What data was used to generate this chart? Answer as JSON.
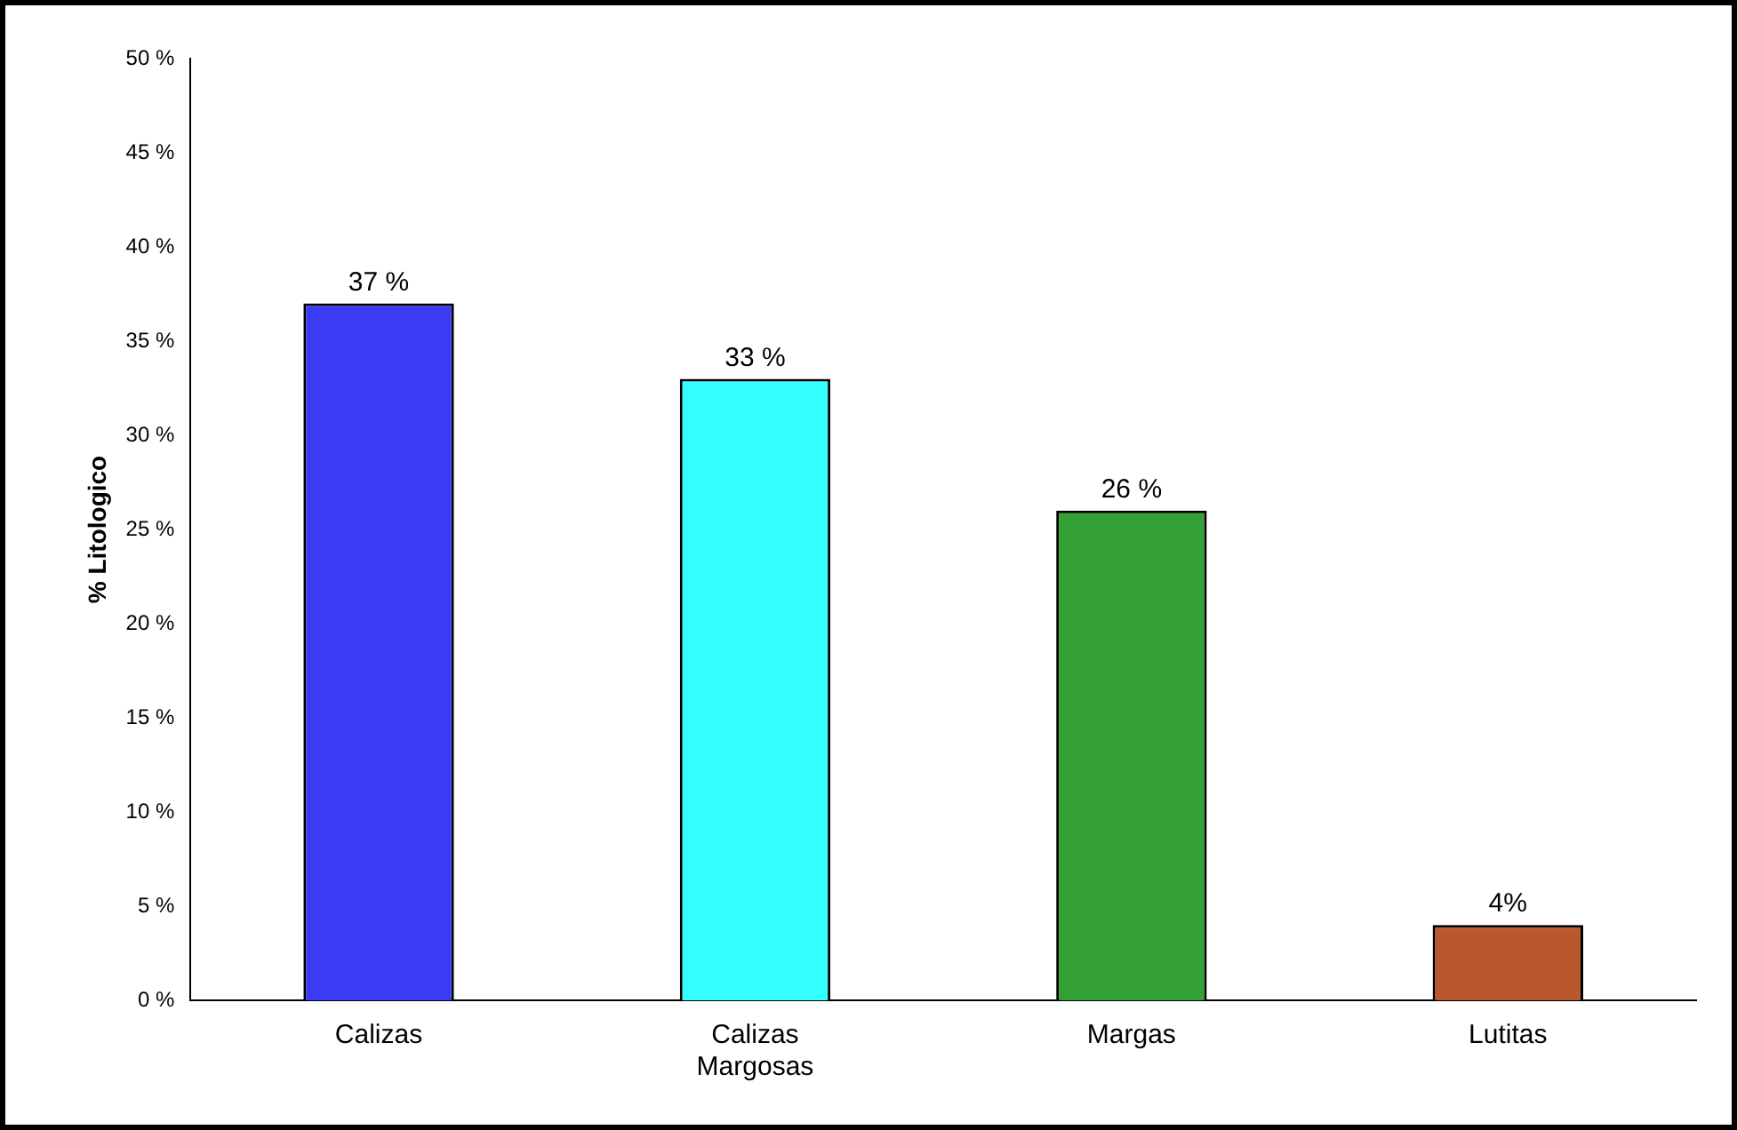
{
  "chart_data": {
    "type": "bar",
    "ylabel": "% Litologico",
    "categories": [
      "Calizas",
      "Calizas Margosas",
      "Margas",
      "Lutitas"
    ],
    "values": [
      37,
      33,
      26,
      4
    ],
    "colors": [
      "#3b3bf5",
      "#33ffff",
      "#33a033",
      "#b8582c"
    ],
    "value_labels": [
      "37 %",
      "33 %",
      "26 %",
      "4%"
    ],
    "ylim": [
      0,
      50
    ],
    "yticks": [
      {
        "value": 0,
        "label": "0 %"
      },
      {
        "value": 5,
        "label": "5 %"
      },
      {
        "value": 10,
        "label": "10 %"
      },
      {
        "value": 15,
        "label": "15 %"
      },
      {
        "value": 20,
        "label": "20 %"
      },
      {
        "value": 25,
        "label": "25 %"
      },
      {
        "value": 30,
        "label": "30 %"
      },
      {
        "value": 35,
        "label": "35 %"
      },
      {
        "value": 40,
        "label": "40 %"
      },
      {
        "value": 45,
        "label": "45 %"
      },
      {
        "value": 50,
        "label": "50 %"
      }
    ],
    "grid": false,
    "legend": false
  }
}
